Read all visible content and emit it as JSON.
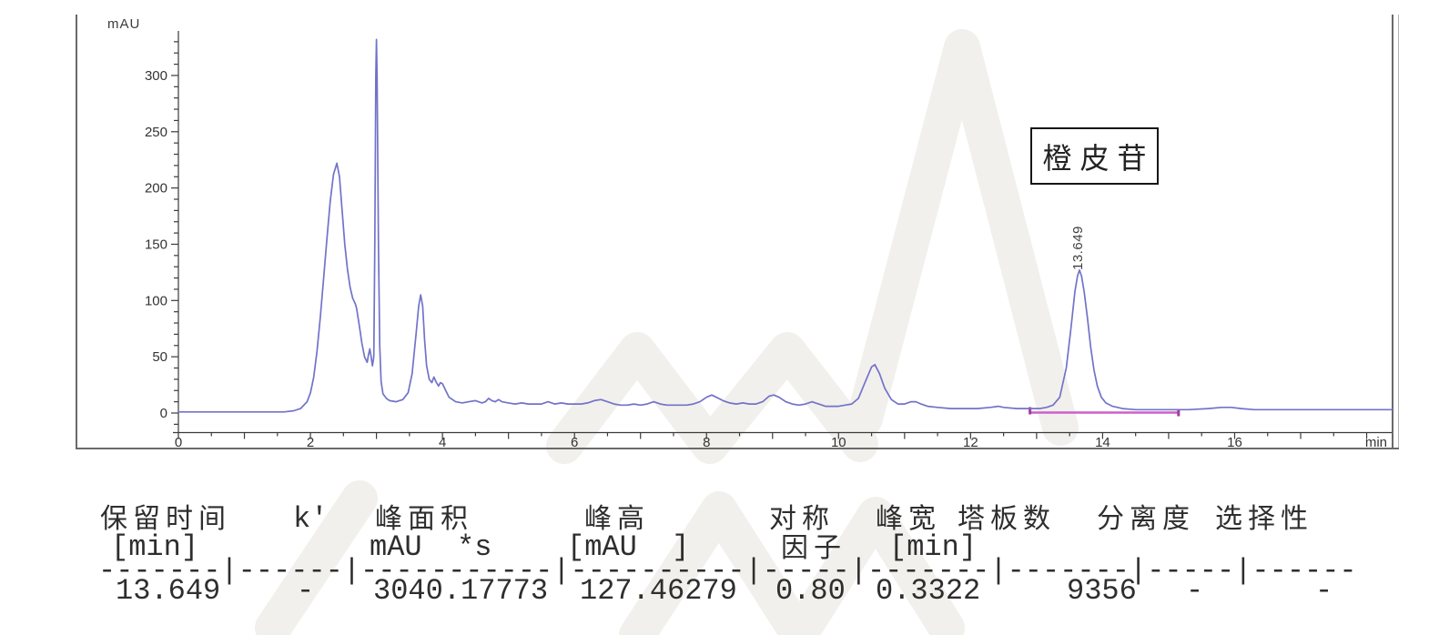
{
  "chart_data": {
    "type": "line",
    "title": "",
    "xlabel": "min",
    "ylabel": "mAU",
    "x_ticks": [
      0,
      2,
      4,
      6,
      8,
      10,
      12,
      14,
      16
    ],
    "x_minor_step": 0.5,
    "x_range": [
      0,
      18.4
    ],
    "y_ticks": [
      0,
      50,
      100,
      150,
      200,
      250,
      300
    ],
    "y_minor_step": 10,
    "y_range": [
      -10,
      335
    ],
    "grid": false,
    "legend": "none",
    "colors": {
      "trace": "#7173c8",
      "baseline": "#cc5fcc",
      "marker": "#a8399a",
      "axis": "#3a3a3a",
      "text": "#333333"
    },
    "labeled_peak": {
      "retention_time_min": 13.649,
      "label": "13.649",
      "annotation": "橙皮苷",
      "height_mAU": 127.46
    },
    "integration": {
      "start_min": 12.9,
      "end_min": 15.15,
      "level_mAU": 0
    },
    "series": [
      {
        "name": "DAD signal",
        "points": [
          [
            0,
            1
          ],
          [
            0.5,
            1
          ],
          [
            1.0,
            1
          ],
          [
            1.4,
            1
          ],
          [
            1.6,
            1
          ],
          [
            1.75,
            2
          ],
          [
            1.85,
            4
          ],
          [
            1.95,
            10
          ],
          [
            2.0,
            18
          ],
          [
            2.05,
            32
          ],
          [
            2.1,
            55
          ],
          [
            2.15,
            85
          ],
          [
            2.2,
            120
          ],
          [
            2.25,
            155
          ],
          [
            2.3,
            188
          ],
          [
            2.35,
            212
          ],
          [
            2.4,
            222
          ],
          [
            2.44,
            210
          ],
          [
            2.48,
            180
          ],
          [
            2.52,
            150
          ],
          [
            2.56,
            128
          ],
          [
            2.6,
            112
          ],
          [
            2.64,
            102
          ],
          [
            2.68,
            97
          ],
          [
            2.7,
            93
          ],
          [
            2.74,
            78
          ],
          [
            2.78,
            62
          ],
          [
            2.82,
            50
          ],
          [
            2.86,
            45
          ],
          [
            2.88,
            52
          ],
          [
            2.9,
            57
          ],
          [
            2.92,
            50
          ],
          [
            2.94,
            42
          ],
          [
            2.96,
            50
          ],
          [
            2.975,
            150
          ],
          [
            2.99,
            300
          ],
          [
            3.0,
            332
          ],
          [
            3.01,
            300
          ],
          [
            3.03,
            150
          ],
          [
            3.05,
            60
          ],
          [
            3.07,
            28
          ],
          [
            3.1,
            17
          ],
          [
            3.15,
            13
          ],
          [
            3.2,
            11
          ],
          [
            3.3,
            10
          ],
          [
            3.4,
            12
          ],
          [
            3.48,
            18
          ],
          [
            3.54,
            35
          ],
          [
            3.6,
            70
          ],
          [
            3.64,
            95
          ],
          [
            3.67,
            105
          ],
          [
            3.7,
            95
          ],
          [
            3.73,
            65
          ],
          [
            3.76,
            42
          ],
          [
            3.8,
            30
          ],
          [
            3.84,
            27
          ],
          [
            3.87,
            32
          ],
          [
            3.9,
            28
          ],
          [
            3.94,
            24
          ],
          [
            3.97,
            27
          ],
          [
            4.0,
            26
          ],
          [
            4.05,
            20
          ],
          [
            4.1,
            14
          ],
          [
            4.2,
            10
          ],
          [
            4.3,
            9
          ],
          [
            4.4,
            10
          ],
          [
            4.5,
            11
          ],
          [
            4.6,
            9
          ],
          [
            4.65,
            10
          ],
          [
            4.7,
            13
          ],
          [
            4.75,
            11
          ],
          [
            4.8,
            10
          ],
          [
            4.85,
            12
          ],
          [
            4.9,
            10
          ],
          [
            5.0,
            9
          ],
          [
            5.1,
            8
          ],
          [
            5.2,
            9
          ],
          [
            5.3,
            8
          ],
          [
            5.4,
            8
          ],
          [
            5.5,
            8
          ],
          [
            5.6,
            10
          ],
          [
            5.7,
            8
          ],
          [
            5.8,
            9
          ],
          [
            5.9,
            8
          ],
          [
            6.0,
            8
          ],
          [
            6.1,
            8
          ],
          [
            6.2,
            9
          ],
          [
            6.3,
            11
          ],
          [
            6.4,
            12
          ],
          [
            6.5,
            10
          ],
          [
            6.6,
            8
          ],
          [
            6.7,
            7
          ],
          [
            6.8,
            7
          ],
          [
            6.9,
            8
          ],
          [
            7.0,
            7
          ],
          [
            7.1,
            8
          ],
          [
            7.2,
            10
          ],
          [
            7.3,
            8
          ],
          [
            7.4,
            7
          ],
          [
            7.5,
            7
          ],
          [
            7.6,
            7
          ],
          [
            7.7,
            7
          ],
          [
            7.8,
            8
          ],
          [
            7.9,
            10
          ],
          [
            8.0,
            14
          ],
          [
            8.08,
            16
          ],
          [
            8.15,
            14
          ],
          [
            8.25,
            11
          ],
          [
            8.35,
            9
          ],
          [
            8.45,
            8
          ],
          [
            8.55,
            9
          ],
          [
            8.65,
            8
          ],
          [
            8.75,
            8
          ],
          [
            8.85,
            10
          ],
          [
            8.95,
            15
          ],
          [
            9.02,
            16
          ],
          [
            9.1,
            14
          ],
          [
            9.2,
            10
          ],
          [
            9.3,
            8
          ],
          [
            9.4,
            7
          ],
          [
            9.5,
            8
          ],
          [
            9.6,
            10
          ],
          [
            9.65,
            9
          ],
          [
            9.7,
            8
          ],
          [
            9.8,
            6
          ],
          [
            9.9,
            6
          ],
          [
            10.0,
            6
          ],
          [
            10.1,
            7
          ],
          [
            10.2,
            8
          ],
          [
            10.3,
            13
          ],
          [
            10.4,
            27
          ],
          [
            10.5,
            41
          ],
          [
            10.55,
            43
          ],
          [
            10.62,
            35
          ],
          [
            10.7,
            22
          ],
          [
            10.8,
            12
          ],
          [
            10.9,
            8
          ],
          [
            11.0,
            8
          ],
          [
            11.1,
            10
          ],
          [
            11.17,
            10
          ],
          [
            11.25,
            8
          ],
          [
            11.35,
            6
          ],
          [
            11.5,
            5
          ],
          [
            11.7,
            4
          ],
          [
            11.9,
            4
          ],
          [
            12.1,
            4
          ],
          [
            12.3,
            5
          ],
          [
            12.42,
            6
          ],
          [
            12.5,
            5
          ],
          [
            12.7,
            4
          ],
          [
            12.9,
            4
          ],
          [
            13.05,
            4
          ],
          [
            13.15,
            5
          ],
          [
            13.25,
            7
          ],
          [
            13.35,
            14
          ],
          [
            13.45,
            40
          ],
          [
            13.52,
            75
          ],
          [
            13.58,
            108
          ],
          [
            13.62,
            122
          ],
          [
            13.649,
            127
          ],
          [
            13.68,
            122
          ],
          [
            13.72,
            108
          ],
          [
            13.77,
            85
          ],
          [
            13.82,
            58
          ],
          [
            13.87,
            38
          ],
          [
            13.92,
            24
          ],
          [
            13.98,
            14
          ],
          [
            14.05,
            9
          ],
          [
            14.15,
            6
          ],
          [
            14.3,
            4
          ],
          [
            14.5,
            3
          ],
          [
            14.7,
            3
          ],
          [
            15.0,
            3
          ],
          [
            15.3,
            3
          ],
          [
            15.6,
            4
          ],
          [
            15.8,
            5
          ],
          [
            15.95,
            5
          ],
          [
            16.1,
            4
          ],
          [
            16.3,
            3
          ],
          [
            16.6,
            3
          ],
          [
            17.0,
            3
          ],
          [
            17.5,
            3
          ],
          [
            18.0,
            3
          ],
          [
            18.4,
            3
          ]
        ]
      }
    ]
  },
  "table": {
    "col1": {
      "h1": "保留时间",
      "h2": "[min]",
      "v": "13.649"
    },
    "col2": {
      "h1": "k'",
      "v": "-"
    },
    "col3": {
      "h1": "峰面积",
      "h2": "mAU  *s",
      "v": "3040.17773"
    },
    "col4": {
      "h1": "峰高",
      "h2": "[mAU  ]",
      "v": "127.46279"
    },
    "col5": {
      "h1": "对称",
      "h2": "因子",
      "v": "0.80"
    },
    "col6": {
      "h1": "峰宽",
      "h2": "[min]",
      "v": "0.3322"
    },
    "col7": {
      "h1": "塔板数",
      "v": "9356"
    },
    "col8": {
      "h1": "分离度",
      "v": "-"
    },
    "col9": {
      "h1": "选择性",
      "v": "-"
    },
    "separator": "-------|------|-----------|----------|-----|-------|-------|-----|------"
  }
}
